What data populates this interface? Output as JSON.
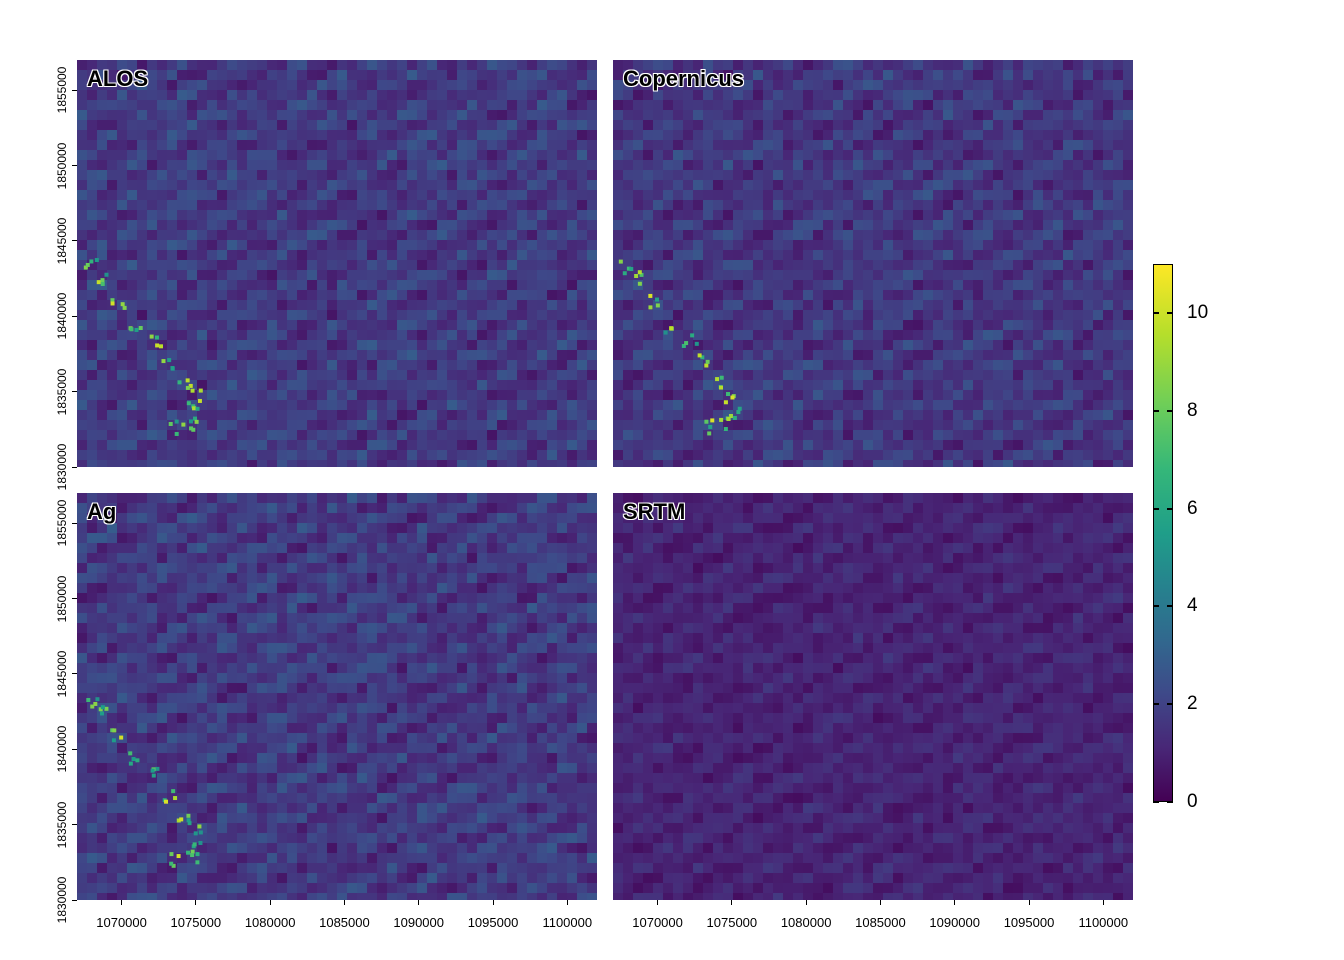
{
  "chart_data": {
    "type": "heatmap",
    "colormap": "viridis",
    "value_range": [
      0,
      11
    ],
    "x_range": [
      1067000,
      1102000
    ],
    "y_range": [
      1830000,
      1857000
    ],
    "panels": [
      {
        "name": "ALOS"
      },
      {
        "name": "Copernicus"
      },
      {
        "name": "Ag"
      },
      {
        "name": "SRTM"
      }
    ],
    "x_ticks": [
      "1070000",
      "1075000",
      "1080000",
      "1085000",
      "1090000",
      "1095000",
      "1100000"
    ],
    "x_tick_values": [
      1070000,
      1075000,
      1080000,
      1085000,
      1090000,
      1095000,
      1100000
    ],
    "y_ticks": [
      "1830000",
      "1835000",
      "1840000",
      "1845000",
      "1850000",
      "1855000"
    ],
    "y_tick_values": [
      1830000,
      1835000,
      1840000,
      1845000,
      1850000,
      1855000
    ],
    "legend": {
      "placement": "right",
      "ticks": [
        "0",
        "2",
        "4",
        "6",
        "8",
        "10"
      ],
      "tick_values": [
        0,
        2,
        4,
        6,
        8,
        10
      ]
    }
  },
  "colors": {
    "low": "#440154",
    "mid": "#31688e",
    "high": "#fde725",
    "panel_base": "#3b2f7e"
  }
}
